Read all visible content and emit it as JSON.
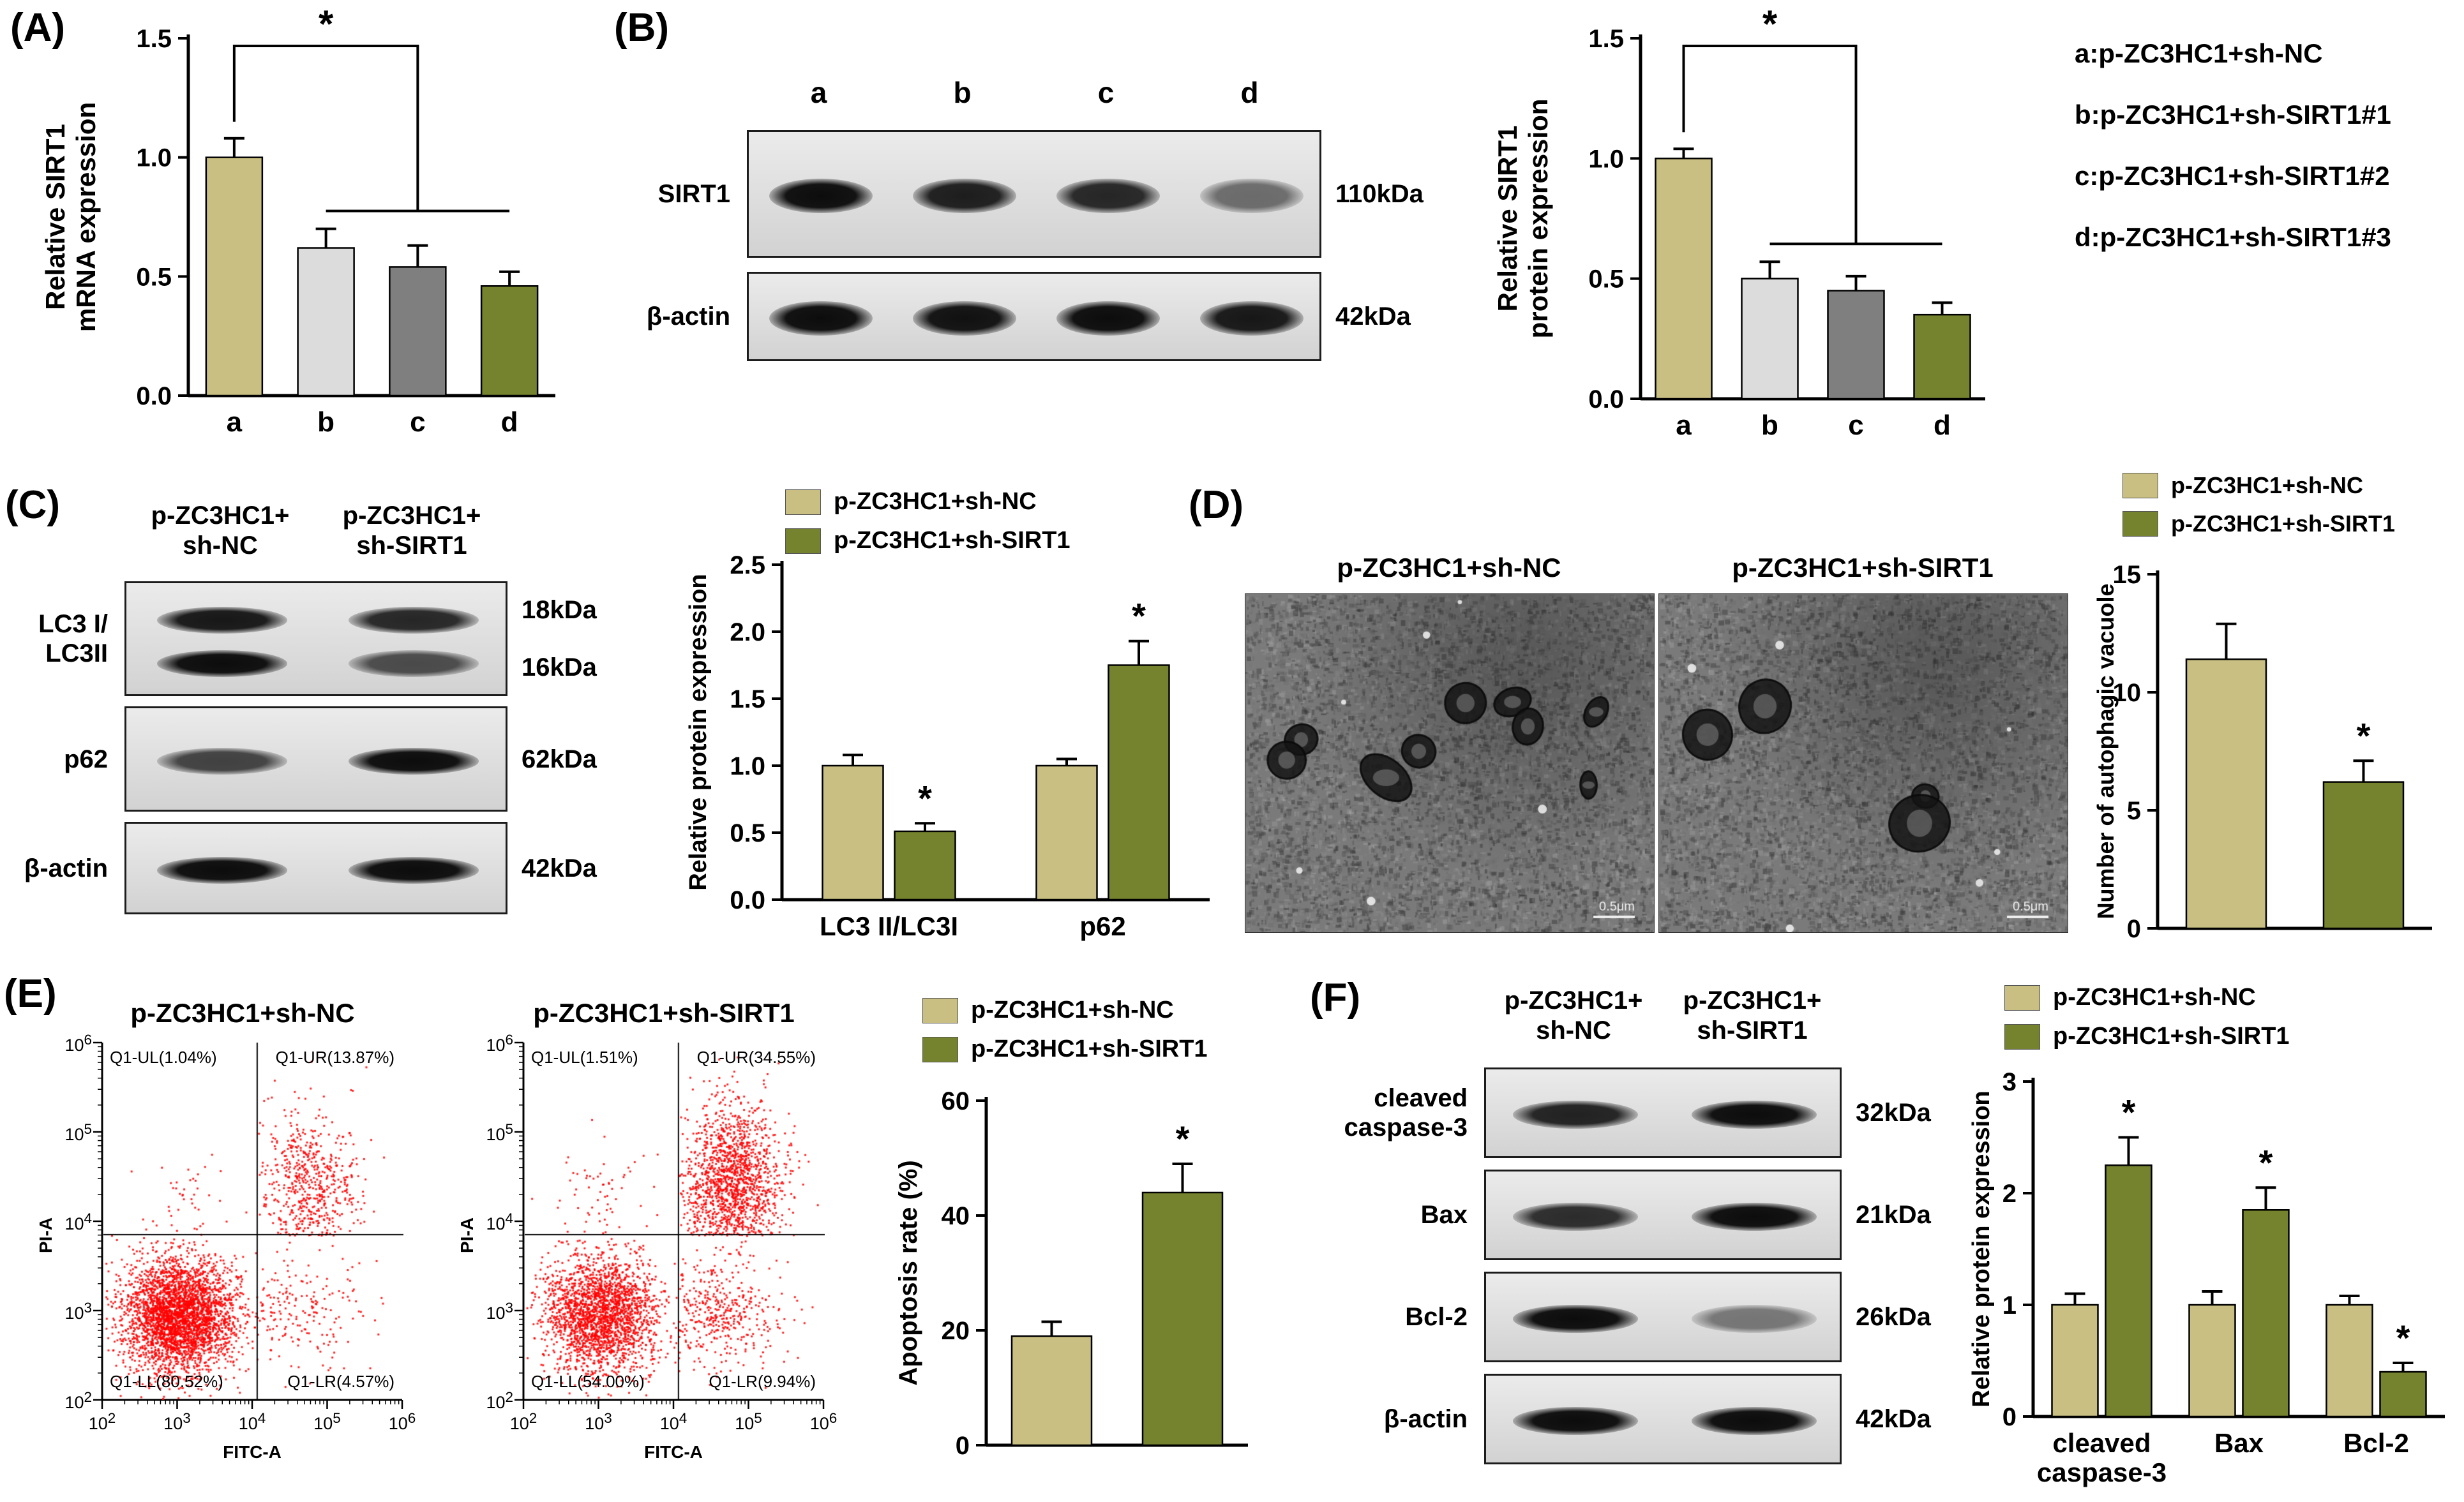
{
  "colors": {
    "tan": "#C9BF82",
    "olive": "#75832F",
    "light_gray": "#DCDCDC",
    "dark_gray": "#7F7F7F",
    "axis": "#000000",
    "dot_red": "#FF0000"
  },
  "panels": {
    "A": {
      "letter": "(A)"
    },
    "B": {
      "letter": "(B)",
      "blot": {
        "lane_labels": [
          "a",
          "b",
          "c",
          "d"
        ],
        "rows": [
          {
            "label": "SIRT1",
            "kda": [
              "110kDa"
            ],
            "lines": [
              [
                1,
                0.92,
                0.88,
                0.55
              ]
            ]
          },
          {
            "label": "β-actin",
            "kda": [
              "42kDa"
            ],
            "lines": [
              [
                1,
                0.98,
                1,
                0.95
              ]
            ]
          }
        ]
      },
      "legend_lines": [
        "a:p-ZC3HC1+sh-NC",
        "b:p-ZC3HC1+sh-SIRT1#1",
        "c:p-ZC3HC1+sh-SIRT1#2",
        "d:p-ZC3HC1+sh-SIRT1#3"
      ]
    },
    "C": {
      "letter": "(C)",
      "blot": {
        "col_labels": [
          "p-ZC3HC1+\nsh-NC",
          "p-ZC3HC1+\nsh-SIRT1"
        ],
        "rows": [
          {
            "label": "LC3 I/\nLC3II",
            "kda": [
              "18kDa",
              "16kDa"
            ],
            "lines": [
              [
                0.95,
                0.88
              ],
              [
                1,
                0.7
              ]
            ]
          },
          {
            "label": "p62",
            "kda": [
              "62kDa"
            ],
            "lines": [
              [
                0.75,
                1
              ]
            ]
          },
          {
            "label": "β-actin",
            "kda": [
              "42kDa"
            ],
            "lines": [
              [
                1,
                1
              ]
            ]
          }
        ]
      },
      "legend": [
        {
          "label": "p-ZC3HC1+sh-NC",
          "color": "tan"
        },
        {
          "label": "p-ZC3HC1+sh-SIRT1",
          "color": "olive"
        }
      ]
    },
    "D": {
      "letter": "(D)",
      "em_images": [
        {
          "title": "p-ZC3HC1+sh-NC",
          "scale_label": "0.5μm",
          "vacuoles": 9,
          "seed": 11
        },
        {
          "title": "p-ZC3HC1+sh-SIRT1",
          "scale_label": "0.5μm",
          "vacuoles": 4,
          "seed": 77
        }
      ],
      "legend": [
        {
          "label": "p-ZC3HC1+sh-NC",
          "color": "tan"
        },
        {
          "label": "p-ZC3HC1+sh-SIRT1",
          "color": "olive"
        }
      ]
    },
    "E": {
      "letter": "(E)",
      "legend": [
        {
          "label": "p-ZC3HC1+sh-NC",
          "color": "tan"
        },
        {
          "label": "p-ZC3HC1+sh-SIRT1",
          "color": "olive"
        }
      ]
    },
    "F": {
      "letter": "(F)",
      "blot": {
        "col_labels": [
          "p-ZC3HC1+\nsh-NC",
          "p-ZC3HC1+\nsh-SIRT1"
        ],
        "rows": [
          {
            "label": "cleaved\ncaspase-3",
            "kda": [
              "32kDa"
            ],
            "lines": [
              [
                0.9,
                1
              ]
            ]
          },
          {
            "label": "Bax",
            "kda": [
              "21kDa"
            ],
            "lines": [
              [
                0.85,
                1
              ]
            ]
          },
          {
            "label": "Bcl-2",
            "kda": [
              "26kDa"
            ],
            "lines": [
              [
                1,
                0.5
              ]
            ]
          },
          {
            "label": "β-actin",
            "kda": [
              "42kDa"
            ],
            "lines": [
              [
                1,
                1
              ]
            ]
          }
        ]
      },
      "legend": [
        {
          "label": "p-ZC3HC1+sh-NC",
          "color": "tan"
        },
        {
          "label": "p-ZC3HC1+sh-SIRT1",
          "color": "olive"
        }
      ]
    }
  },
  "chart_data": [
    {
      "id": "A",
      "type": "bar",
      "ylabel": [
        "Relative SIRT1",
        "mRNA expression"
      ],
      "ylim": [
        0,
        1.5
      ],
      "ytick_vals": [
        0,
        0.5,
        1,
        1.5
      ],
      "ytick_labels": [
        "0.0",
        "0.5",
        "1.0",
        "1.5"
      ],
      "categories": [
        "a",
        "b",
        "c",
        "d"
      ],
      "values": [
        1.0,
        0.62,
        0.54,
        0.46
      ],
      "errors": [
        0.08,
        0.08,
        0.09,
        0.06
      ],
      "bar_colors": [
        "tan",
        "light_gray",
        "dark_gray",
        "olive"
      ],
      "sig_bracket": {
        "from": 0,
        "span": [
          1,
          3
        ],
        "label": "*"
      }
    },
    {
      "id": "B",
      "type": "bar",
      "ylabel": [
        "Relative SIRT1",
        "protein expression"
      ],
      "ylim": [
        0,
        1.5
      ],
      "ytick_vals": [
        0,
        0.5,
        1,
        1.5
      ],
      "ytick_labels": [
        "0.0",
        "0.5",
        "1.0",
        "1.5"
      ],
      "categories": [
        "a",
        "b",
        "c",
        "d"
      ],
      "values": [
        1.0,
        0.5,
        0.45,
        0.35
      ],
      "errors": [
        0.04,
        0.07,
        0.06,
        0.05
      ],
      "bar_colors": [
        "tan",
        "light_gray",
        "dark_gray",
        "olive"
      ],
      "sig_bracket": {
        "from": 0,
        "span": [
          1,
          3
        ],
        "label": "*"
      }
    },
    {
      "id": "C",
      "type": "grouped-bar",
      "ylabel": [
        "Relative protein expression"
      ],
      "ylim": [
        0,
        2.5
      ],
      "ytick_vals": [
        0,
        0.5,
        1,
        1.5,
        2,
        2.5
      ],
      "ytick_labels": [
        "0.0",
        "0.5",
        "1.0",
        "1.5",
        "2.0",
        "2.5"
      ],
      "categories": [
        "LC3 II/LC3I",
        "p62"
      ],
      "series": [
        {
          "name": "p-ZC3HC1+sh-NC",
          "color": "tan",
          "values": [
            1.0,
            1.0
          ],
          "errors": [
            0.08,
            0.05
          ],
          "stars": [
            "",
            ""
          ]
        },
        {
          "name": "p-ZC3HC1+sh-SIRT1",
          "color": "olive",
          "values": [
            0.51,
            1.75
          ],
          "errors": [
            0.06,
            0.18
          ],
          "stars": [
            "*",
            "*"
          ]
        }
      ]
    },
    {
      "id": "D",
      "type": "bar",
      "ylabel": [
        "Number of autophagic vacuole"
      ],
      "ylim": [
        0,
        15
      ],
      "ytick_vals": [
        0,
        5,
        10,
        15
      ],
      "ytick_labels": [
        "0",
        "5",
        "10",
        "15"
      ],
      "categories": [
        "",
        ""
      ],
      "values": [
        11.4,
        6.2
      ],
      "errors": [
        1.5,
        0.9
      ],
      "stars": [
        "",
        "*"
      ],
      "bar_colors": [
        "tan",
        "olive"
      ]
    },
    {
      "id": "E",
      "type": "bar",
      "ylabel": [
        "Apoptosis rate (%)"
      ],
      "ylim": [
        0,
        60
      ],
      "ytick_vals": [
        0,
        20,
        40,
        60
      ],
      "ytick_labels": [
        "0",
        "20",
        "40",
        "60"
      ],
      "categories": [
        "",
        ""
      ],
      "values": [
        19,
        44
      ],
      "errors": [
        2.5,
        5
      ],
      "stars": [
        "",
        "*"
      ],
      "bar_colors": [
        "tan",
        "olive"
      ]
    },
    {
      "id": "F",
      "type": "grouped-bar",
      "ylabel": [
        "Relative protein expression"
      ],
      "ylim": [
        0,
        3
      ],
      "ytick_vals": [
        0,
        1,
        2,
        3
      ],
      "ytick_labels": [
        "0",
        "1",
        "2",
        "3"
      ],
      "categories": [
        "cleaved\ncaspase-3",
        "Bax",
        "Bcl-2"
      ],
      "series": [
        {
          "name": "p-ZC3HC1+sh-NC",
          "color": "tan",
          "values": [
            1.0,
            1.0,
            1.0
          ],
          "errors": [
            0.1,
            0.12,
            0.08
          ],
          "stars": [
            "",
            "",
            ""
          ]
        },
        {
          "name": "p-ZC3HC1+sh-SIRT1",
          "color": "olive",
          "values": [
            2.25,
            1.85,
            0.4
          ],
          "errors": [
            0.25,
            0.2,
            0.08
          ],
          "stars": [
            "*",
            "*",
            "*"
          ]
        }
      ]
    },
    {
      "id": "flow1",
      "type": "scatter",
      "title": "p-ZC3HC1+sh-NC",
      "xlabel": "FITC-A",
      "ylabel": "PI-A",
      "decades": [
        2,
        3,
        4,
        5,
        6
      ],
      "quadrant_labels": {
        "UL": "Q1-UL(1.04%)",
        "UR": "Q1-UR(13.87%)",
        "LL": "Q1-LL(80.52%)",
        "LR": "Q1-LR(4.57%)"
      },
      "fractions": {
        "UL": 0.0104,
        "UR": 0.1387,
        "LL": 0.8052,
        "LR": 0.0457
      },
      "seed": 12
    },
    {
      "id": "flow2",
      "type": "scatter",
      "title": "p-ZC3HC1+sh-SIRT1",
      "xlabel": "FITC-A",
      "ylabel": "PI-A",
      "decades": [
        2,
        3,
        4,
        5,
        6
      ],
      "quadrant_labels": {
        "UL": "Q1-UL(1.51%)",
        "UR": "Q1-UR(34.55%)",
        "LL": "Q1-LL(54.00%)",
        "LR": "Q1-LR(9.94%)"
      },
      "fractions": {
        "UL": 0.0151,
        "UR": 0.3455,
        "LL": 0.54,
        "LR": 0.0994
      },
      "seed": 99
    }
  ]
}
